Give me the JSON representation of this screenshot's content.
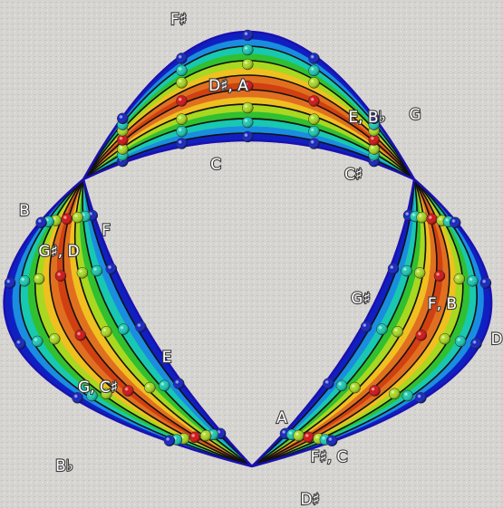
{
  "labels": [
    "F♯",
    "D♯, A",
    "E, B♭",
    "G",
    "C",
    "C♯",
    "B",
    "F",
    "G♯, D",
    "G♯",
    "F, B",
    "D",
    "E",
    "G, C♯",
    "A",
    "F♯, C",
    "B♭",
    "D♯"
  ]
}
